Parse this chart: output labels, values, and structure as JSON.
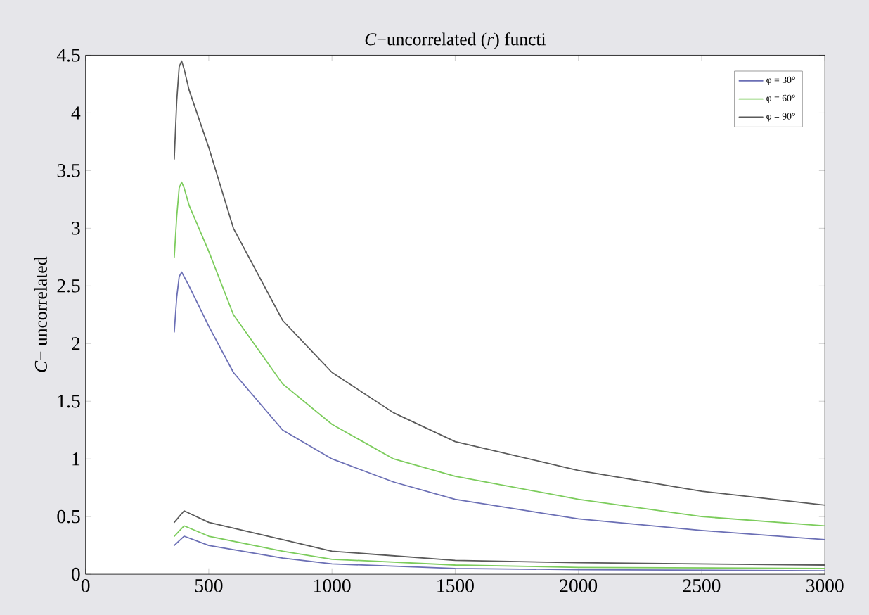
{
  "chart_data": {
    "type": "line",
    "title": "*C*−uncorrelated (*r*) functi",
    "ylabel": "*C*− uncorrelated",
    "xlim": [
      0,
      3000
    ],
    "ylim": [
      0,
      4.5
    ],
    "xticks": [
      0,
      500,
      1000,
      1500,
      2000,
      2500,
      3000
    ],
    "yticks": [
      0,
      0.5,
      1,
      1.5,
      2,
      2.5,
      3,
      3.5,
      4,
      4.5
    ],
    "grid": false,
    "legend": "top right",
    "marker": "none",
    "line_style": "solid",
    "series": [
      {
        "name": "φ = 30°",
        "color": "#6b6fb5",
        "x": [
          360,
          370,
          380,
          390,
          400,
          420,
          500,
          600,
          800,
          1000,
          1250,
          1500,
          2000,
          2500,
          3000
        ],
        "values": [
          2.1,
          2.4,
          2.58,
          2.62,
          2.58,
          2.5,
          2.15,
          1.75,
          1.25,
          1.0,
          0.8,
          0.65,
          0.48,
          0.38,
          0.3
        ]
      },
      {
        "name": "φ = 60°",
        "color": "#7ccc5c",
        "x": [
          360,
          370,
          380,
          390,
          400,
          420,
          500,
          600,
          800,
          1000,
          1250,
          1500,
          2000,
          2500,
          3000
        ],
        "values": [
          2.75,
          3.1,
          3.35,
          3.4,
          3.35,
          3.2,
          2.8,
          2.25,
          1.65,
          1.3,
          1.0,
          0.85,
          0.65,
          0.5,
          0.42
        ]
      },
      {
        "name": "φ = 90°",
        "color": "#5a5a5a",
        "x": [
          360,
          370,
          380,
          390,
          400,
          420,
          500,
          600,
          800,
          1000,
          1250,
          1500,
          2000,
          2500,
          3000
        ],
        "values": [
          3.6,
          4.1,
          4.4,
          4.45,
          4.38,
          4.2,
          3.7,
          3.0,
          2.2,
          1.75,
          1.4,
          1.15,
          0.9,
          0.72,
          0.6
        ]
      },
      {
        "color": "#6b6fb5",
        "x": [
          360,
          400,
          500,
          800,
          1000,
          1500,
          2000,
          3000
        ],
        "values": [
          0.25,
          0.33,
          0.25,
          0.14,
          0.09,
          0.05,
          0.04,
          0.03
        ]
      },
      {
        "color": "#7ccc5c",
        "x": [
          360,
          400,
          500,
          800,
          1000,
          1500,
          2000,
          3000
        ],
        "values": [
          0.33,
          0.42,
          0.33,
          0.2,
          0.13,
          0.08,
          0.06,
          0.05
        ]
      },
      {
        "color": "#5a5a5a",
        "x": [
          360,
          400,
          500,
          800,
          1000,
          1500,
          2000,
          3000
        ],
        "values": [
          0.45,
          0.55,
          0.45,
          0.3,
          0.2,
          0.12,
          0.1,
          0.08
        ]
      }
    ]
  }
}
